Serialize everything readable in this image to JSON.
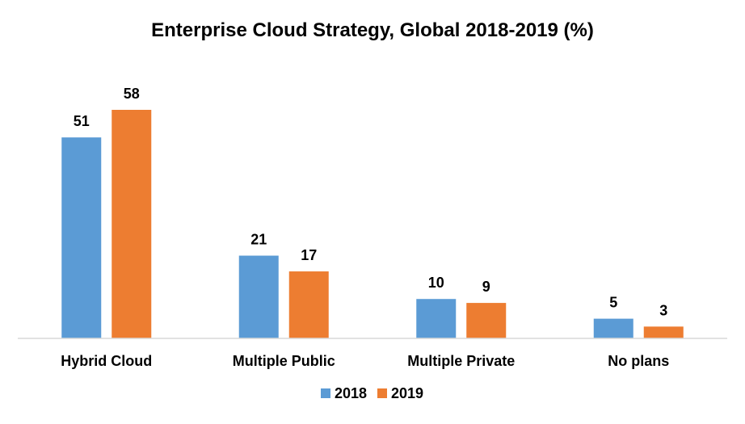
{
  "chart_data": {
    "type": "bar",
    "title": "Enterprise Cloud Strategy, Global 2018-2019 (%)",
    "xlabel": "",
    "ylabel": "",
    "categories": [
      "Hybrid Cloud",
      "Multiple Public",
      "Multiple Private",
      "No plans"
    ],
    "series": [
      {
        "name": "2018",
        "values": [
          51,
          21,
          10,
          5
        ],
        "color": "#5B9BD5"
      },
      {
        "name": "2019",
        "values": [
          58,
          17,
          9,
          3
        ],
        "color": "#ED7D31"
      }
    ],
    "ylim": [
      0,
      64
    ],
    "grid": false,
    "data_labels": true,
    "legend": "bottom-center",
    "axis_color": "#D9D9D9"
  }
}
